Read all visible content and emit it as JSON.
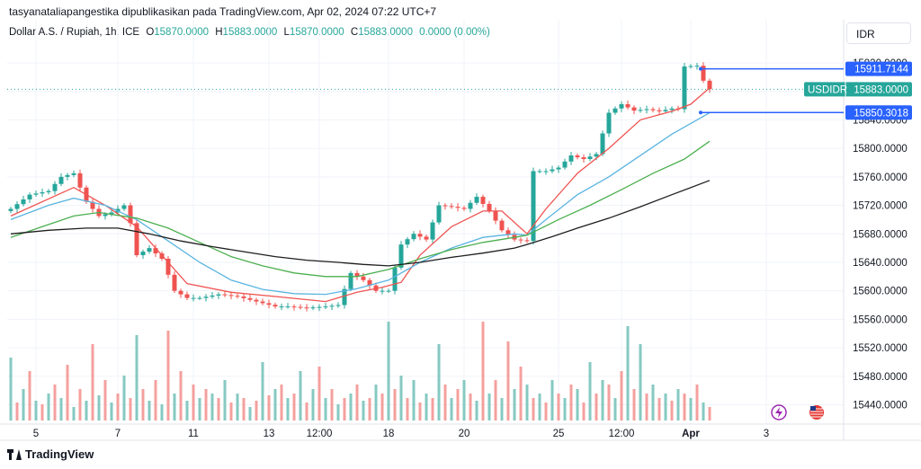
{
  "caption": "tasyanataliapangestika dipublikasikan pada TradingView.com, Apr 02, 2024 07:22 UTC+7",
  "legend": {
    "symbol": "Dollar A.S. / Rupiah, 1h, ICE",
    "o_label": "O",
    "o_value": "15870.0000",
    "h_label": "H",
    "h_value": "15883.0000",
    "l_label": "L",
    "l_value": "15870.0000",
    "c_label": "C",
    "c_value": "15883.0000",
    "change": "0.0000 (0.00%)"
  },
  "currency_button": "IDR",
  "brand": "TradingView",
  "colors": {
    "up": "#26a69a",
    "down": "#ef5350",
    "ema_fast": "#ef5350",
    "ema_mid": "#5ab4e0",
    "ema_slow": "#4caf50",
    "ema_long": "#1e1e1e",
    "level_line": "#2962ff",
    "vol_up": "#86c9c2",
    "vol_down": "#f4a09e"
  },
  "chart_data": {
    "type": "candlestick",
    "symbol": "USDIDR",
    "timeframe": "1h",
    "y_ticks": [
      "15920.0000",
      "15880.0000",
      "15840.0000",
      "15800.0000",
      "15760.0000",
      "15720.0000",
      "15680.0000",
      "15640.0000",
      "15600.0000",
      "15560.0000",
      "15520.0000",
      "15480.0000",
      "15440.0000"
    ],
    "y_tick_values": [
      15920,
      15880,
      15840,
      15800,
      15760,
      15720,
      15680,
      15640,
      15600,
      15560,
      15520,
      15480,
      15440
    ],
    "ylim": [
      15432,
      15932
    ],
    "x_ticks": [
      {
        "label": "5",
        "index": 4
      },
      {
        "label": "7",
        "index": 17
      },
      {
        "label": "11",
        "index": 29
      },
      {
        "label": "13",
        "index": 41
      },
      {
        "label": "12:00",
        "index": 49
      },
      {
        "label": "18",
        "index": 60
      },
      {
        "label": "20",
        "index": 72
      },
      {
        "label": "25",
        "index": 87
      },
      {
        "label": "12:00",
        "index": 97
      },
      {
        "label": "Apr",
        "index": 108
      },
      {
        "label": "3",
        "index": 120
      }
    ],
    "n_slots": 124,
    "labels": {
      "last": {
        "name": "USDIDR",
        "value": "15883.0000",
        "price": 15883
      },
      "upper": {
        "value": "15911.7144",
        "price": 15911.7
      },
      "lower": {
        "value": "15850.3018",
        "price": 15850.3
      }
    },
    "close_path": [
      [
        0,
        15715
      ],
      [
        3,
        15735
      ],
      [
        6,
        15740
      ],
      [
        8,
        15760
      ],
      [
        10,
        15765
      ],
      [
        12,
        15725
      ],
      [
        14,
        15705
      ],
      [
        16,
        15710
      ],
      [
        18,
        15720
      ],
      [
        19,
        15695
      ],
      [
        20,
        15650
      ],
      [
        22,
        15660
      ],
      [
        24,
        15645
      ],
      [
        26,
        15600
      ],
      [
        28,
        15590
      ],
      [
        30,
        15590
      ],
      [
        33,
        15595
      ],
      [
        36,
        15592
      ],
      [
        39,
        15585
      ],
      [
        42,
        15578
      ],
      [
        44,
        15578
      ],
      [
        47,
        15576
      ],
      [
        50,
        15578
      ],
      [
        52,
        15580
      ],
      [
        54,
        15625
      ],
      [
        56,
        15615
      ],
      [
        58,
        15600
      ],
      [
        60,
        15600
      ],
      [
        62,
        15665
      ],
      [
        64,
        15680
      ],
      [
        66,
        15672
      ],
      [
        68,
        15720
      ],
      [
        70,
        15718
      ],
      [
        72,
        15715
      ],
      [
        74,
        15732
      ],
      [
        76,
        15712
      ],
      [
        78,
        15685
      ],
      [
        80,
        15672
      ],
      [
        82,
        15670
      ],
      [
        83,
        15768
      ],
      [
        85,
        15768
      ],
      [
        87,
        15773
      ],
      [
        89,
        15790
      ],
      [
        91,
        15785
      ],
      [
        93,
        15792
      ],
      [
        95,
        15850
      ],
      [
        97,
        15862
      ],
      [
        99,
        15853
      ],
      [
        101,
        15855
      ],
      [
        103,
        15852
      ],
      [
        105,
        15856
      ],
      [
        106,
        15855
      ],
      [
        107,
        15915
      ],
      [
        109,
        15916
      ],
      [
        110,
        15895
      ],
      [
        111,
        15883
      ]
    ],
    "moving_averages": [
      {
        "key": "ema_fast",
        "points": [
          [
            0,
            15705
          ],
          [
            10,
            15745
          ],
          [
            15,
            15720
          ],
          [
            20,
            15690
          ],
          [
            25,
            15640
          ],
          [
            28,
            15610
          ],
          [
            35,
            15598
          ],
          [
            42,
            15592
          ],
          [
            50,
            15585
          ],
          [
            55,
            15598
          ],
          [
            59,
            15605
          ],
          [
            62,
            15612
          ],
          [
            65,
            15650
          ],
          [
            70,
            15690
          ],
          [
            75,
            15712
          ],
          [
            78,
            15712
          ],
          [
            82,
            15680
          ],
          [
            85,
            15715
          ],
          [
            90,
            15765
          ],
          [
            95,
            15800
          ],
          [
            100,
            15840
          ],
          [
            105,
            15852
          ],
          [
            108,
            15862
          ],
          [
            111,
            15885
          ]
        ]
      },
      {
        "key": "ema_mid",
        "points": [
          [
            0,
            15700
          ],
          [
            6,
            15720
          ],
          [
            10,
            15730
          ],
          [
            15,
            15720
          ],
          [
            20,
            15700
          ],
          [
            25,
            15670
          ],
          [
            30,
            15640
          ],
          [
            35,
            15615
          ],
          [
            40,
            15602
          ],
          [
            45,
            15596
          ],
          [
            50,
            15595
          ],
          [
            55,
            15603
          ],
          [
            60,
            15615
          ],
          [
            65,
            15640
          ],
          [
            70,
            15660
          ],
          [
            75,
            15675
          ],
          [
            80,
            15680
          ],
          [
            82,
            15678
          ],
          [
            85,
            15700
          ],
          [
            90,
            15735
          ],
          [
            95,
            15760
          ],
          [
            100,
            15790
          ],
          [
            105,
            15820
          ],
          [
            108,
            15835
          ],
          [
            111,
            15850
          ]
        ]
      },
      {
        "key": "ema_slow",
        "points": [
          [
            0,
            15675
          ],
          [
            5,
            15690
          ],
          [
            10,
            15705
          ],
          [
            14,
            15710
          ],
          [
            20,
            15702
          ],
          [
            25,
            15688
          ],
          [
            30,
            15668
          ],
          [
            35,
            15648
          ],
          [
            40,
            15635
          ],
          [
            45,
            15625
          ],
          [
            50,
            15620
          ],
          [
            55,
            15620
          ],
          [
            60,
            15630
          ],
          [
            65,
            15645
          ],
          [
            70,
            15658
          ],
          [
            75,
            15668
          ],
          [
            80,
            15675
          ],
          [
            82,
            15678
          ],
          [
            87,
            15700
          ],
          [
            92,
            15720
          ],
          [
            97,
            15742
          ],
          [
            102,
            15765
          ],
          [
            107,
            15785
          ],
          [
            111,
            15810
          ]
        ]
      },
      {
        "key": "ema_long",
        "points": [
          [
            0,
            15680
          ],
          [
            6,
            15685
          ],
          [
            12,
            15688
          ],
          [
            17,
            15688
          ],
          [
            22,
            15680
          ],
          [
            27,
            15670
          ],
          [
            32,
            15662
          ],
          [
            37,
            15655
          ],
          [
            42,
            15648
          ],
          [
            47,
            15643
          ],
          [
            52,
            15640
          ],
          [
            56,
            15637
          ],
          [
            60,
            15635
          ],
          [
            65,
            15640
          ],
          [
            70,
            15647
          ],
          [
            75,
            15653
          ],
          [
            80,
            15660
          ],
          [
            82,
            15665
          ],
          [
            86,
            15676
          ],
          [
            90,
            15688
          ],
          [
            95,
            15702
          ],
          [
            100,
            15718
          ],
          [
            105,
            15735
          ],
          [
            111,
            15755
          ]
        ]
      }
    ],
    "volume": {
      "bars": [
        [
          0,
          "u",
          70
        ],
        [
          1,
          "d",
          20
        ],
        [
          2,
          "u",
          35
        ],
        [
          3,
          "d",
          55
        ],
        [
          4,
          "u",
          22
        ],
        [
          5,
          "d",
          18
        ],
        [
          6,
          "u",
          30
        ],
        [
          7,
          "d",
          40
        ],
        [
          8,
          "u",
          25
        ],
        [
          9,
          "d",
          62
        ],
        [
          10,
          "u",
          15
        ],
        [
          11,
          "d",
          35
        ],
        [
          12,
          "u",
          22
        ],
        [
          13,
          "d",
          85
        ],
        [
          14,
          "u",
          28
        ],
        [
          15,
          "d",
          45
        ],
        [
          16,
          "u",
          20
        ],
        [
          17,
          "d",
          30
        ],
        [
          18,
          "u",
          50
        ],
        [
          19,
          "d",
          25
        ],
        [
          20,
          "u",
          95
        ],
        [
          21,
          "d",
          35
        ],
        [
          22,
          "u",
          22
        ],
        [
          23,
          "d",
          45
        ],
        [
          24,
          "u",
          18
        ],
        [
          25,
          "d",
          100
        ],
        [
          26,
          "u",
          30
        ],
        [
          27,
          "d",
          55
        ],
        [
          28,
          "u",
          22
        ],
        [
          29,
          "d",
          40
        ],
        [
          30,
          "u",
          25
        ],
        [
          31,
          "d",
          35
        ],
        [
          32,
          "u",
          30
        ],
        [
          33,
          "d",
          25
        ],
        [
          34,
          "u",
          45
        ],
        [
          35,
          "d",
          20
        ],
        [
          36,
          "u",
          30
        ],
        [
          37,
          "d",
          25
        ],
        [
          38,
          "u",
          15
        ],
        [
          39,
          "d",
          22
        ],
        [
          40,
          "u",
          65
        ],
        [
          41,
          "d",
          28
        ],
        [
          42,
          "u",
          35
        ],
        [
          43,
          "d",
          40
        ],
        [
          44,
          "u",
          25
        ],
        [
          45,
          "d",
          30
        ],
        [
          46,
          "u",
          55
        ],
        [
          47,
          "d",
          20
        ],
        [
          48,
          "u",
          35
        ],
        [
          49,
          "d",
          60
        ],
        [
          50,
          "u",
          25
        ],
        [
          51,
          "d",
          35
        ],
        [
          52,
          "u",
          18
        ],
        [
          53,
          "d",
          25
        ],
        [
          54,
          "u",
          30
        ],
        [
          55,
          "d",
          40
        ],
        [
          56,
          "u",
          22
        ],
        [
          57,
          "d",
          25
        ],
        [
          58,
          "u",
          40
        ],
        [
          59,
          "d",
          30
        ],
        [
          60,
          "u",
          110
        ],
        [
          61,
          "d",
          35
        ],
        [
          62,
          "u",
          50
        ],
        [
          63,
          "d",
          25
        ],
        [
          64,
          "u",
          45
        ],
        [
          65,
          "d",
          20
        ],
        [
          66,
          "u",
          30
        ],
        [
          67,
          "d",
          25
        ],
        [
          68,
          "u",
          85
        ],
        [
          69,
          "d",
          40
        ],
        [
          70,
          "u",
          25
        ],
        [
          71,
          "d",
          35
        ],
        [
          72,
          "u",
          45
        ],
        [
          73,
          "d",
          30
        ],
        [
          74,
          "u",
          22
        ],
        [
          75,
          "d",
          110
        ],
        [
          76,
          "u",
          30
        ],
        [
          77,
          "d",
          45
        ],
        [
          78,
          "u",
          25
        ],
        [
          79,
          "d",
          88
        ],
        [
          80,
          "u",
          35
        ],
        [
          81,
          "d",
          60
        ],
        [
          82,
          "u",
          40
        ],
        [
          83,
          "d",
          25
        ],
        [
          84,
          "u",
          30
        ],
        [
          85,
          "d",
          20
        ],
        [
          86,
          "u",
          45
        ],
        [
          87,
          "d",
          30
        ],
        [
          88,
          "u",
          25
        ],
        [
          89,
          "d",
          40
        ],
        [
          90,
          "u",
          35
        ],
        [
          91,
          "d",
          20
        ],
        [
          92,
          "u",
          65
        ],
        [
          93,
          "d",
          30
        ],
        [
          94,
          "u",
          45
        ],
        [
          95,
          "d",
          40
        ],
        [
          96,
          "u",
          25
        ],
        [
          97,
          "d",
          55
        ],
        [
          98,
          "u",
          105
        ],
        [
          99,
          "d",
          35
        ],
        [
          100,
          "u",
          85
        ],
        [
          101,
          "d",
          30
        ],
        [
          102,
          "u",
          40
        ],
        [
          103,
          "d",
          25
        ],
        [
          104,
          "u",
          30
        ],
        [
          105,
          "d",
          22
        ],
        [
          106,
          "u",
          35
        ],
        [
          107,
          "d",
          30
        ],
        [
          108,
          "u",
          25
        ],
        [
          109,
          "d",
          40
        ],
        [
          110,
          "u",
          20
        ],
        [
          111,
          "d",
          15
        ]
      ]
    }
  }
}
